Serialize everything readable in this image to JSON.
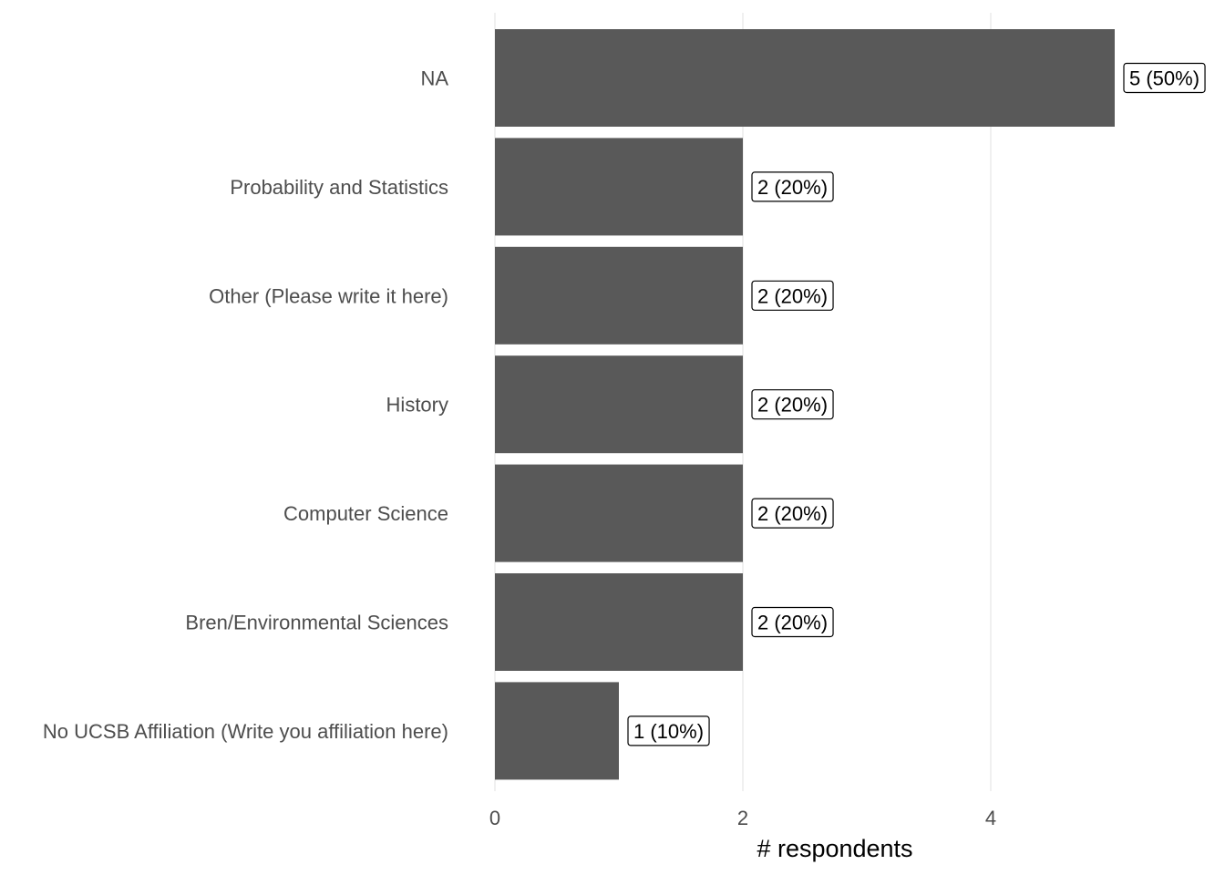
{
  "chart_data": {
    "type": "bar",
    "orientation": "horizontal",
    "categories": [
      "NA",
      "Probability and Statistics",
      "Other (Please write it here)",
      "History",
      "Computer Science",
      "Bren/Environmental Sciences",
      "No UCSB Affiliation (Write you affiliation here)"
    ],
    "values": [
      5,
      2,
      2,
      2,
      2,
      2,
      1
    ],
    "data_labels": [
      "5 (50%)",
      "2 (20%)",
      "2 (20%)",
      "2 (20%)",
      "2 (20%)",
      "2 (20%)",
      "1 (10%)"
    ],
    "xlabel": "# respondents",
    "ylabel": "",
    "title": "",
    "xlim": [
      0,
      5
    ],
    "xticks": [
      0,
      2,
      4
    ],
    "xtick_labels": [
      "0",
      "2",
      "4"
    ],
    "grid": "vertical major gridlines",
    "legend": "none",
    "colors": {
      "bar": "#595959",
      "grid": "#ebebeb",
      "label_box_border": "#000000",
      "category_text": "#4d4d4d"
    }
  }
}
